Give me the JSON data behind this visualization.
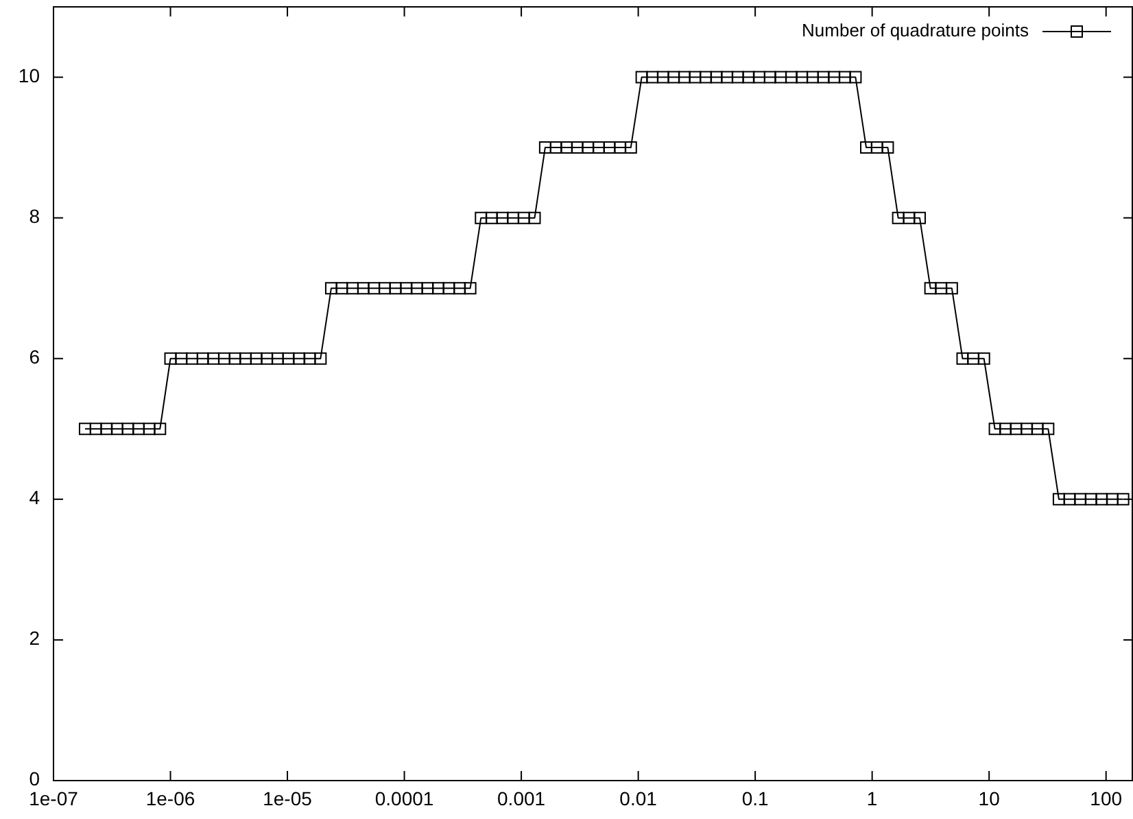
{
  "chart_data": {
    "type": "line",
    "log": "x",
    "marker": "square",
    "legend": "top right",
    "xlim": [
      1e-07,
      170
    ],
    "xticks": [
      {
        "value": 1e-07,
        "label": "1e-07"
      },
      {
        "value": 1e-06,
        "label": "1e-06"
      },
      {
        "value": 1e-05,
        "label": "1e-05"
      },
      {
        "value": 0.0001,
        "label": "0.0001"
      },
      {
        "value": 0.001,
        "label": "0.001"
      },
      0.01,
      0.1,
      1,
      10,
      100
    ],
    "ylim": [
      0,
      11
    ],
    "yticks": [
      0,
      2,
      4,
      6,
      8,
      10
    ],
    "x": [
      1.86e-07,
      2.3e-07,
      2.84e-07,
      3.5e-07,
      4.33e-07,
      5.34e-07,
      6.59e-07,
      8.14e-07,
      1e-06,
      1.24e-06,
      1.53e-06,
      1.89e-06,
      2.33e-06,
      2.88e-06,
      3.56e-06,
      4.39e-06,
      5.42e-06,
      6.69e-06,
      8.26e-06,
      1.02e-05,
      1.26e-05,
      1.55e-05,
      1.92e-05,
      2.37e-05,
      2.92e-05,
      3.61e-05,
      4.46e-05,
      5.5e-05,
      6.79e-05,
      8.38e-05,
      0.000104,
      0.000128,
      0.000158,
      0.000195,
      0.00024,
      0.000297,
      0.000366,
      0.000452,
      0.000558,
      0.000689,
      0.000851,
      0.00105,
      0.0013,
      0.0016,
      0.00198,
      0.00244,
      0.00301,
      0.00372,
      0.00459,
      0.00567,
      0.007,
      0.00864,
      0.0107,
      0.0132,
      0.0163,
      0.0201,
      0.0248,
      0.0306,
      0.0378,
      0.0466,
      0.0575,
      0.071,
      0.0877,
      0.108,
      0.134,
      0.165,
      0.204,
      0.251,
      0.31,
      0.383,
      0.473,
      0.584,
      0.721,
      0.89,
      1.1,
      1.36,
      1.67,
      2.07,
      2.55,
      3.15,
      3.89,
      4.8,
      5.93,
      7.32,
      9.04,
      11.2,
      13.8,
      17,
      21,
      25.9,
      32,
      39.5,
      48.8,
      60.2,
      74.3,
      91.7,
      113,
      140
    ],
    "series": [
      {
        "name": "Number of quadrature points",
        "color": "#000000",
        "values": [
          5,
          5,
          5,
          5,
          5,
          5,
          5,
          5,
          6,
          6,
          6,
          6,
          6,
          6,
          6,
          6,
          6,
          6,
          6,
          6,
          6,
          6,
          6,
          7,
          7,
          7,
          7,
          7,
          7,
          7,
          7,
          7,
          7,
          7,
          7,
          7,
          7,
          8,
          8,
          8,
          8,
          8,
          8,
          9,
          9,
          9,
          9,
          9,
          9,
          9,
          9,
          9,
          10,
          10,
          10,
          10,
          10,
          10,
          10,
          10,
          10,
          10,
          10,
          10,
          10,
          10,
          10,
          10,
          10,
          10,
          10,
          10,
          10,
          9,
          9,
          9,
          8,
          8,
          8,
          7,
          7,
          7,
          6,
          6,
          6,
          5,
          5,
          5,
          5,
          5,
          5,
          4,
          4,
          4,
          4,
          4,
          4,
          4
        ]
      }
    ]
  }
}
